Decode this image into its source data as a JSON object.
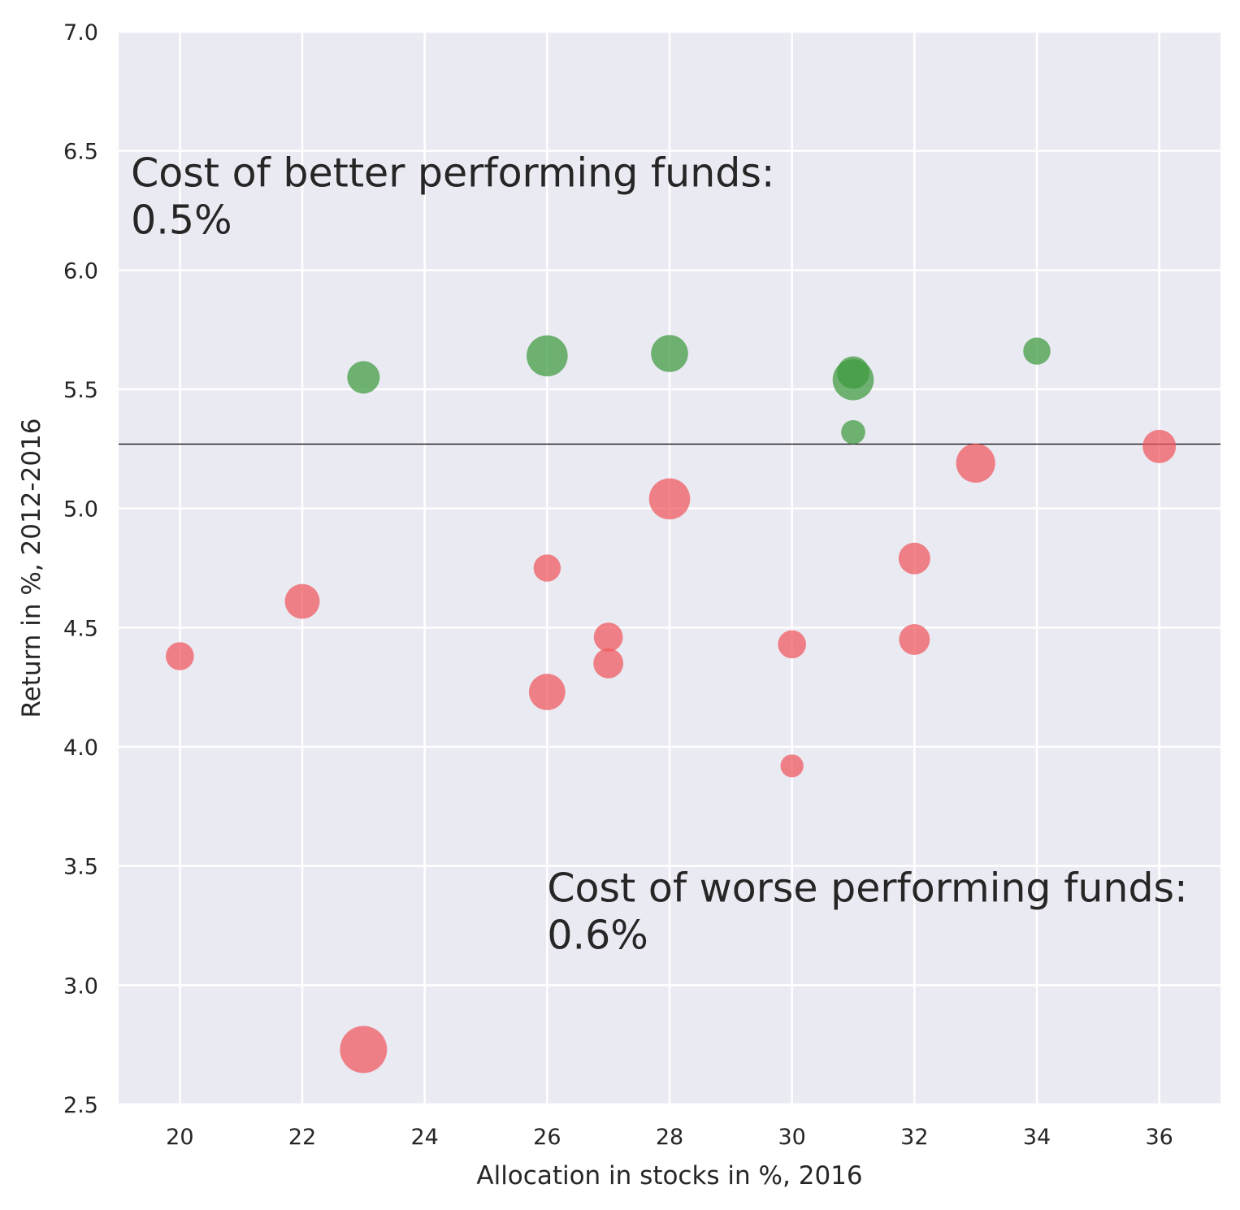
{
  "chart_data": {
    "type": "scatter",
    "xlabel": "Allocation in stocks in %, 2016",
    "ylabel": "Return in %, 2012-2016",
    "xlim": [
      19,
      37
    ],
    "ylim": [
      2.5,
      7.0
    ],
    "xticks": [
      "20",
      "22",
      "24",
      "26",
      "28",
      "30",
      "32",
      "34",
      "36"
    ],
    "yticks": [
      "2.5",
      "3.0",
      "3.5",
      "4.0",
      "4.5",
      "5.0",
      "5.5",
      "6.0",
      "6.5",
      "7.0"
    ],
    "grid": true,
    "background": "#eaeaf2",
    "reference_line": {
      "y": 5.27,
      "color": "#000000"
    },
    "colors": {
      "better": "#3d9a3d",
      "worse": "#f0565c"
    },
    "series": [
      {
        "group": "better",
        "points": [
          {
            "x": 23,
            "y": 5.55,
            "size": 1.0
          },
          {
            "x": 26,
            "y": 5.64,
            "size": 1.6
          },
          {
            "x": 28,
            "y": 5.65,
            "size": 1.3
          },
          {
            "x": 31,
            "y": 5.54,
            "size": 1.6
          },
          {
            "x": 31,
            "y": 5.57,
            "size": 1.0
          },
          {
            "x": 31,
            "y": 5.32,
            "size": 0.55
          },
          {
            "x": 34,
            "y": 5.66,
            "size": 0.7
          }
        ]
      },
      {
        "group": "worse",
        "points": [
          {
            "x": 20,
            "y": 4.38,
            "size": 0.75
          },
          {
            "x": 22,
            "y": 4.61,
            "size": 1.15
          },
          {
            "x": 23,
            "y": 2.73,
            "size": 2.1
          },
          {
            "x": 26,
            "y": 4.75,
            "size": 0.7
          },
          {
            "x": 26,
            "y": 4.23,
            "size": 1.25
          },
          {
            "x": 27,
            "y": 4.46,
            "size": 0.8
          },
          {
            "x": 27,
            "y": 4.35,
            "size": 0.85
          },
          {
            "x": 28,
            "y": 5.04,
            "size": 1.6
          },
          {
            "x": 30,
            "y": 4.43,
            "size": 0.75
          },
          {
            "x": 30,
            "y": 3.92,
            "size": 0.5
          },
          {
            "x": 32,
            "y": 4.79,
            "size": 0.95
          },
          {
            "x": 32,
            "y": 4.45,
            "size": 0.9
          },
          {
            "x": 33,
            "y": 5.19,
            "size": 1.45
          },
          {
            "x": 36,
            "y": 5.26,
            "size": 1.05
          }
        ]
      }
    ],
    "annotations": [
      {
        "lines": [
          "Cost of better performing funds:",
          "0.5%"
        ],
        "x": 19.2,
        "y": 6.35
      },
      {
        "lines": [
          "Cost of worse performing funds:",
          "0.6%"
        ],
        "x": 26.0,
        "y": 3.35
      }
    ]
  }
}
